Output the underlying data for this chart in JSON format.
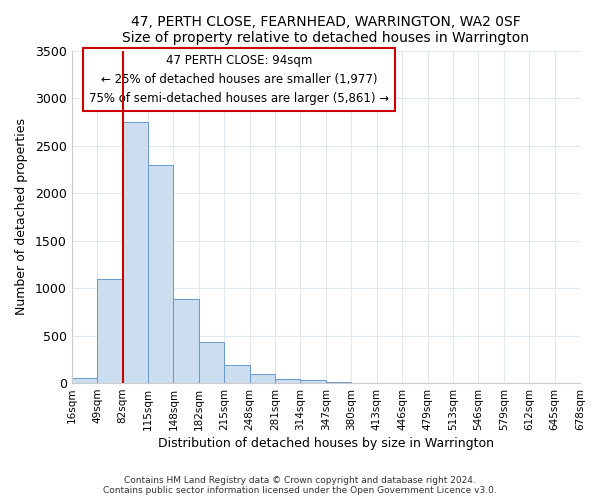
{
  "title": "47, PERTH CLOSE, FEARNHEAD, WARRINGTON, WA2 0SF",
  "subtitle": "Size of property relative to detached houses in Warrington",
  "xlabel": "Distribution of detached houses by size in Warrington",
  "ylabel": "Number of detached properties",
  "bar_values": [
    50,
    1100,
    2750,
    2300,
    880,
    430,
    185,
    100,
    45,
    30,
    10,
    5,
    0,
    0,
    0,
    0,
    0,
    0,
    0,
    0
  ],
  "bin_labels": [
    "16sqm",
    "49sqm",
    "82sqm",
    "115sqm",
    "148sqm",
    "182sqm",
    "215sqm",
    "248sqm",
    "281sqm",
    "314sqm",
    "347sqm",
    "380sqm",
    "413sqm",
    "446sqm",
    "479sqm",
    "513sqm",
    "546sqm",
    "579sqm",
    "612sqm",
    "645sqm",
    "678sqm"
  ],
  "bar_color": "#ccddf0",
  "bar_edge_color": "#6699cc",
  "vline_x": 2.0,
  "vline_color": "#cc0000",
  "annotation_title": "47 PERTH CLOSE: 94sqm",
  "annotation_line1": "← 25% of detached houses are smaller (1,977)",
  "annotation_line2": "75% of semi-detached houses are larger (5,861) →",
  "annotation_box_color": "#cc0000",
  "ylim": [
    0,
    3500
  ],
  "yticks": [
    0,
    500,
    1000,
    1500,
    2000,
    2500,
    3000,
    3500
  ],
  "footer1": "Contains HM Land Registry data © Crown copyright and database right 2024.",
  "footer2": "Contains public sector information licensed under the Open Government Licence v3.0.",
  "bg_color": "#ffffff",
  "grid_color": "#dde8f0"
}
